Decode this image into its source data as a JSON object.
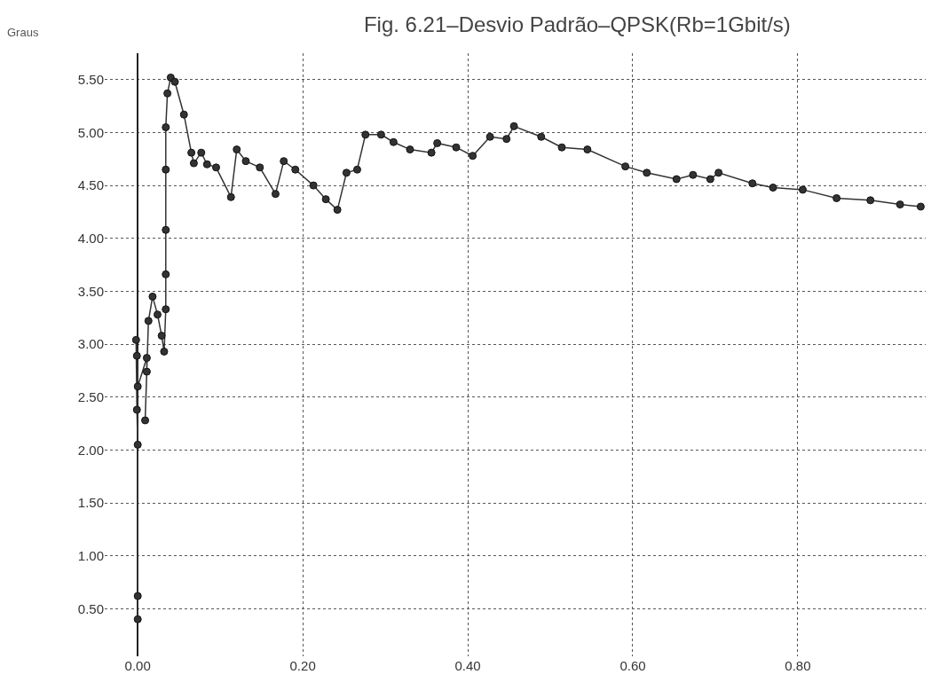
{
  "chart_data": {
    "type": "line",
    "title": "Fig. 6.21–Desvio Padrão–QPSK(Rb=1Gbit/s)",
    "ylabel": "Graus",
    "series": [
      {
        "color": "#333333",
        "x": [
          0.0,
          0.0,
          0.0,
          -0.001,
          -0.002,
          -0.001,
          0.0,
          0.011,
          0.011,
          0.009,
          0.013,
          0.018,
          0.024,
          0.029,
          0.032,
          0.034,
          0.034,
          0.034,
          0.034,
          0.034,
          0.036,
          0.04,
          0.045,
          0.056,
          0.065,
          0.068,
          0.077,
          0.084,
          0.095,
          0.113,
          0.12,
          0.131,
          0.148,
          0.167,
          0.177,
          0.191,
          0.213,
          0.228,
          0.242,
          0.253,
          0.266,
          0.276,
          0.295,
          0.31,
          0.33,
          0.356,
          0.363,
          0.386,
          0.406,
          0.427,
          0.447,
          0.456,
          0.489,
          0.514,
          0.545,
          0.591,
          0.617,
          0.653,
          0.673,
          0.694,
          0.704,
          0.745,
          0.77,
          0.806,
          0.847,
          0.888,
          0.924,
          0.949
        ],
        "values": [
          0.4,
          0.62,
          2.05,
          2.38,
          3.04,
          2.89,
          2.6,
          2.87,
          2.74,
          2.28,
          3.22,
          3.45,
          3.28,
          3.08,
          2.93,
          3.33,
          3.66,
          4.08,
          4.65,
          5.05,
          5.37,
          5.52,
          5.48,
          5.17,
          4.81,
          4.71,
          4.81,
          4.7,
          4.67,
          4.39,
          4.84,
          4.73,
          4.67,
          4.42,
          4.73,
          4.65,
          4.5,
          4.37,
          4.27,
          4.62,
          4.65,
          4.98,
          4.98,
          4.91,
          4.84,
          4.81,
          4.9,
          4.86,
          4.78,
          4.96,
          4.94,
          5.06,
          4.96,
          4.86,
          4.84,
          4.68,
          4.62,
          4.56,
          4.6,
          4.56,
          4.62,
          4.52,
          4.48,
          4.46,
          4.38,
          4.36,
          4.32,
          4.3
        ]
      }
    ],
    "xlim": [
      -0.04,
      0.955
    ],
    "ylim": [
      0.05,
      5.75
    ],
    "xticks": [
      {
        "value": 0,
        "label": "0.00"
      },
      {
        "value": 0.2,
        "label": "0.20"
      },
      {
        "value": 0.4,
        "label": "0.40"
      },
      {
        "value": 0.6,
        "label": "0.60"
      },
      {
        "value": 0.8,
        "label": "0.80"
      }
    ],
    "yticks": [
      {
        "value": 0.5,
        "label": "0.50"
      },
      {
        "value": 1,
        "label": "1.00"
      },
      {
        "value": 1.5,
        "label": "1.50"
      },
      {
        "value": 2,
        "label": "2.00"
      },
      {
        "value": 2.5,
        "label": "2.50"
      },
      {
        "value": 3,
        "label": "3.00"
      },
      {
        "value": 3.5,
        "label": "3.50"
      },
      {
        "value": 4,
        "label": "4.00"
      },
      {
        "value": 4.5,
        "label": "4.50"
      },
      {
        "value": 5,
        "label": "5.00"
      },
      {
        "value": 5.5,
        "label": "5.50"
      }
    ],
    "grid": true,
    "marker": "circle",
    "line_style": "solid"
  }
}
